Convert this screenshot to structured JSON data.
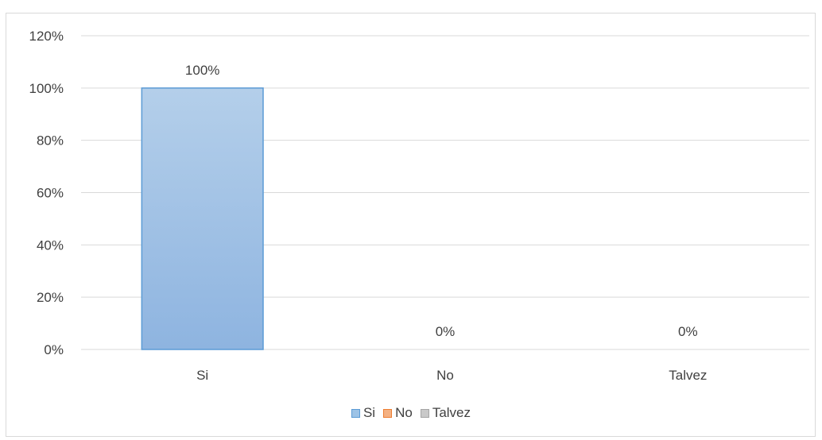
{
  "chart_data": {
    "type": "bar",
    "categories": [
      "Si",
      "No",
      "Talvez"
    ],
    "values": [
      100,
      0,
      0
    ],
    "data_labels": [
      "100%",
      "0%",
      "0%"
    ],
    "ylim": [
      0,
      120
    ],
    "y_ticks": [
      "0%",
      "20%",
      "40%",
      "60%",
      "80%",
      "100%",
      "120%"
    ],
    "title": "",
    "xlabel": "",
    "ylabel": "",
    "grid": true,
    "legend_position": "bottom",
    "legend": [
      "Si",
      "No",
      "Talvez"
    ],
    "colors": {
      "Si": "#9dc3e6",
      "No": "#f4b183",
      "Talvez": "#c9c9c9"
    }
  }
}
